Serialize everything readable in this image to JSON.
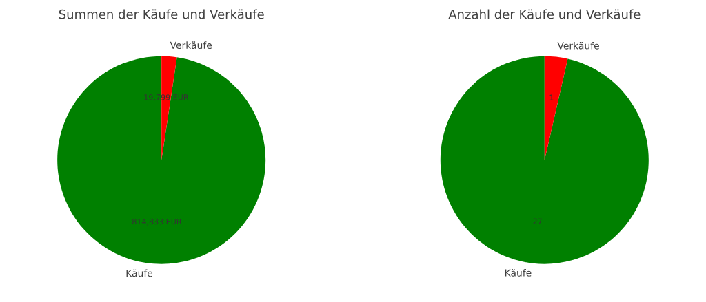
{
  "chart_data": [
    {
      "type": "pie",
      "title": "Summen der Käufe und Verkäufe",
      "categories": [
        "Käufe",
        "Verkäufe"
      ],
      "values": [
        814833,
        19799
      ],
      "colors": [
        "#008000",
        "#ff0000"
      ],
      "value_labels": [
        "814,833 EUR",
        "19,799 EUR"
      ]
    },
    {
      "type": "pie",
      "title": "Anzahl der Käufe und Verkäufe",
      "categories": [
        "Käufe",
        "Verkäufe"
      ],
      "values": [
        27,
        1
      ],
      "colors": [
        "#008000",
        "#ff0000"
      ],
      "data_labels": true
    }
  ]
}
